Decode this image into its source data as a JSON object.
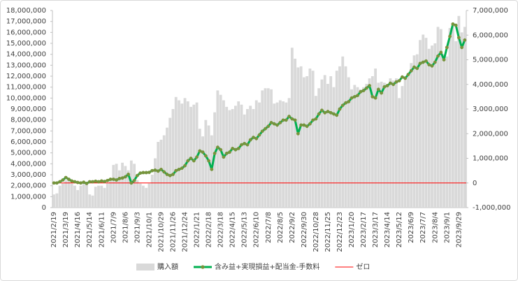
{
  "chart_data": {
    "type": "combo",
    "categories": [
      "2021/2/19",
      null,
      null,
      null,
      "2021/3/19",
      null,
      null,
      null,
      "2021/4/16",
      null,
      null,
      null,
      "2021/5/14",
      null,
      null,
      null,
      "2021/6/11",
      null,
      null,
      null,
      "2021/7/9",
      null,
      null,
      null,
      "2021/8/6",
      null,
      null,
      null,
      "2021/9/3",
      null,
      null,
      null,
      "2021/10/1",
      null,
      null,
      null,
      "2021/10/29",
      null,
      null,
      null,
      "2021/11/26",
      null,
      null,
      null,
      "2021/12/24",
      null,
      null,
      null,
      "2022/1/21",
      null,
      null,
      null,
      "2022/2/18",
      null,
      null,
      null,
      "2022/3/18",
      null,
      null,
      null,
      "2022/4/15",
      null,
      null,
      null,
      "2022/5/13",
      null,
      null,
      null,
      "2022/6/10",
      null,
      null,
      null,
      "2022/7/8",
      null,
      null,
      null,
      "2022/8/5",
      null,
      null,
      null,
      "2022/9/2",
      null,
      null,
      null,
      "2022/9/30",
      null,
      null,
      null,
      "2022/10/28",
      null,
      null,
      null,
      "2022/11/25",
      null,
      null,
      null,
      "2022/12/23",
      null,
      null,
      null,
      "2023/1/20",
      null,
      null,
      null,
      "2023/2/17",
      null,
      null,
      null,
      "2023/3/17",
      null,
      null,
      null,
      "2023/4/14",
      null,
      null,
      null,
      "2023/5/12",
      null,
      null,
      null,
      "2023/6/9",
      null,
      null,
      null,
      "2023/7/7",
      null,
      null,
      null,
      "2023/8/4",
      null,
      null,
      null,
      "2023/9/1",
      null,
      null,
      null,
      "2023/9/29",
      null,
      null
    ],
    "series": [
      {
        "name": "購入額",
        "type": "bar",
        "axis": "y",
        "color": "#d9d9d9",
        "values": [
          1200000,
          1300000,
          2000000,
          2200000,
          2500000,
          2600000,
          2200000,
          2000000,
          1600000,
          2000000,
          2200000,
          2300000,
          1200000,
          1100000,
          1900000,
          2000000,
          2000000,
          1800000,
          2200000,
          2500000,
          3900000,
          4000000,
          3400000,
          4100000,
          3800000,
          3400000,
          4300000,
          4000000,
          2500000,
          2200000,
          2000000,
          1800000,
          2200000,
          3000000,
          4500000,
          6000000,
          6200000,
          6600000,
          7300000,
          8200000,
          9000000,
          10100000,
          9800000,
          9500000,
          10000000,
          9700000,
          9200000,
          9400000,
          9600000,
          7200000,
          6500000,
          8000000,
          7500000,
          6600000,
          8700000,
          10700000,
          10300000,
          9800000,
          9200000,
          8900000,
          9000000,
          9300000,
          9700000,
          9400000,
          8500000,
          9000000,
          9300000,
          9000000,
          9800000,
          9600000,
          10700000,
          10900000,
          10900000,
          10800000,
          9500000,
          9600000,
          9800000,
          9700000,
          9600000,
          10000000,
          14600000,
          13600000,
          12800000,
          12900000,
          11900000,
          12000000,
          12700000,
          12500000,
          10200000,
          10900000,
          11700000,
          12100000,
          11300000,
          12000000,
          11000000,
          12500000,
          12900000,
          13800000,
          12900000,
          11900000,
          10800000,
          11200000,
          11000000,
          10800000,
          11000000,
          11300000,
          11800000,
          12000000,
          12700000,
          11400000,
          11500000,
          11400000,
          11300000,
          11800000,
          11600000,
          11800000,
          10000000,
          11100000,
          12000000,
          12000000,
          13200000,
          13900000,
          14000000,
          15300000,
          15800000,
          15500000,
          14500000,
          14800000,
          15000000,
          16500000,
          16300000,
          14000000,
          13800000,
          16400000,
          16700000,
          15200000,
          17500000,
          16000000,
          16500000
        ]
      },
      {
        "name": "含み益+実現損益+配当金-手数料",
        "type": "line",
        "axis": "y2",
        "color": "#00b050",
        "marker_color": "#77933c",
        "values": [
          0,
          0,
          50000,
          120000,
          220000,
          150000,
          80000,
          50000,
          20000,
          0,
          30000,
          -20000,
          50000,
          50000,
          70000,
          50000,
          80000,
          60000,
          100000,
          150000,
          150000,
          120000,
          180000,
          200000,
          250000,
          350000,
          0,
          100000,
          300000,
          400000,
          420000,
          420000,
          430000,
          500000,
          520000,
          480000,
          550000,
          450000,
          350000,
          300000,
          350000,
          500000,
          550000,
          600000,
          700000,
          900000,
          1000000,
          900000,
          1050000,
          1300000,
          1250000,
          1100000,
          900000,
          550000,
          1200000,
          1450000,
          1350000,
          1050000,
          1200000,
          1250000,
          1400000,
          1350000,
          1400000,
          1550000,
          1600000,
          1550000,
          1750000,
          1850000,
          1800000,
          1950000,
          2100000,
          2200000,
          2300000,
          2450000,
          2400000,
          2350000,
          2450000,
          2550000,
          2550000,
          2700000,
          2600000,
          2550000,
          2000000,
          2350000,
          2350000,
          2300000,
          2400000,
          2550000,
          2600000,
          2800000,
          2950000,
          2850000,
          2900000,
          2850000,
          2800000,
          2750000,
          3000000,
          3150000,
          3250000,
          3300000,
          3450000,
          3500000,
          3550000,
          3700000,
          3750000,
          3850000,
          3950000,
          3500000,
          3450000,
          3800000,
          3650000,
          3900000,
          3950000,
          4050000,
          4000000,
          4100000,
          4150000,
          4300000,
          4250000,
          4400000,
          4550000,
          4700000,
          4650000,
          4850000,
          4900000,
          4950000,
          4800000,
          4750000,
          4900000,
          5150000,
          5300000,
          5000000,
          5500000,
          5950000,
          6450000,
          6400000,
          5900000,
          5500000,
          5800000
        ]
      }
    ],
    "reference_lines": [
      {
        "name": "ゼロ",
        "value": 0,
        "axis": "y2",
        "color": "#ff0000"
      }
    ],
    "ylim": [
      0,
      18000000
    ],
    "yticks": [
      0,
      {
        "value": 1000000,
        "label": "1,000,000"
      },
      {
        "value": 2000000,
        "label": "2,000,000"
      },
      {
        "value": 3000000,
        "label": "3,000,000"
      },
      {
        "value": 4000000,
        "label": "4,000,000"
      },
      {
        "value": 5000000,
        "label": "5,000,000"
      },
      {
        "value": 6000000,
        "label": "6,000,000"
      },
      {
        "value": 7000000,
        "label": "7,000,000"
      },
      {
        "value": 8000000,
        "label": "8,000,000"
      },
      {
        "value": 9000000,
        "label": "9,000,000"
      },
      {
        "value": 10000000,
        "label": "10,000,000"
      },
      {
        "value": 11000000,
        "label": "11,000,000"
      },
      {
        "value": 12000000,
        "label": "12,000,000"
      },
      {
        "value": 13000000,
        "label": "13,000,000"
      },
      {
        "value": 14000000,
        "label": "14,000,000"
      },
      {
        "value": 15000000,
        "label": "15,000,000"
      },
      {
        "value": 16000000,
        "label": "16,000,000"
      },
      {
        "value": 17000000,
        "label": "17,000,000"
      },
      {
        "value": 18000000,
        "label": "18,000,000"
      }
    ],
    "y2lim": [
      -1000000,
      7000000
    ],
    "y2ticks": [
      {
        "value": -1000000,
        "label": "-1,000,000"
      },
      0,
      {
        "value": 1000000,
        "label": "1,000,000"
      },
      {
        "value": 2000000,
        "label": "2,000,000"
      },
      {
        "value": 3000000,
        "label": "3,000,000"
      },
      {
        "value": 4000000,
        "label": "4,000,000"
      },
      {
        "value": 5000000,
        "label": "5,000,000"
      },
      {
        "value": 6000000,
        "label": "6,000,000"
      },
      {
        "value": 7000000,
        "label": "7,000,000"
      }
    ],
    "grid": false,
    "legend": "bottom"
  }
}
